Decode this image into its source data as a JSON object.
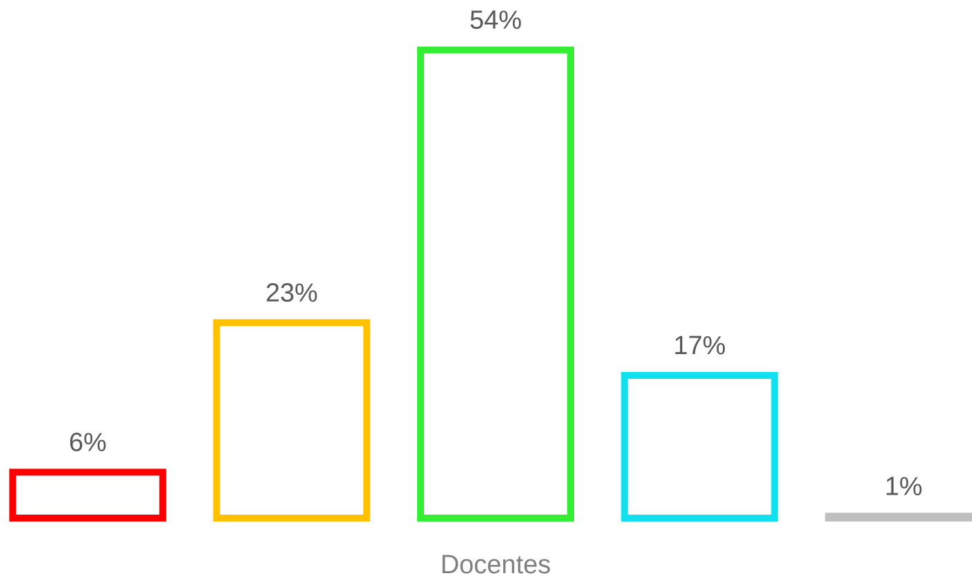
{
  "chart_data": {
    "type": "bar",
    "x_label": "Docentes",
    "categories": [
      "Docentes"
    ],
    "series": [
      {
        "color": "#ff0000",
        "values": [
          6
        ],
        "value_labels": [
          "6%"
        ]
      },
      {
        "color": "#ffc000",
        "values": [
          23
        ],
        "value_labels": [
          "23%"
        ]
      },
      {
        "color": "#33ee33",
        "values": [
          54
        ],
        "value_labels": [
          "54%"
        ]
      },
      {
        "color": "#11e0ee",
        "values": [
          17
        ],
        "value_labels": [
          "17%"
        ]
      },
      {
        "color": "#bfbfbf",
        "values": [
          1
        ],
        "value_labels": [
          "1%"
        ]
      }
    ],
    "ylim": [
      0,
      60
    ],
    "grid": false
  }
}
